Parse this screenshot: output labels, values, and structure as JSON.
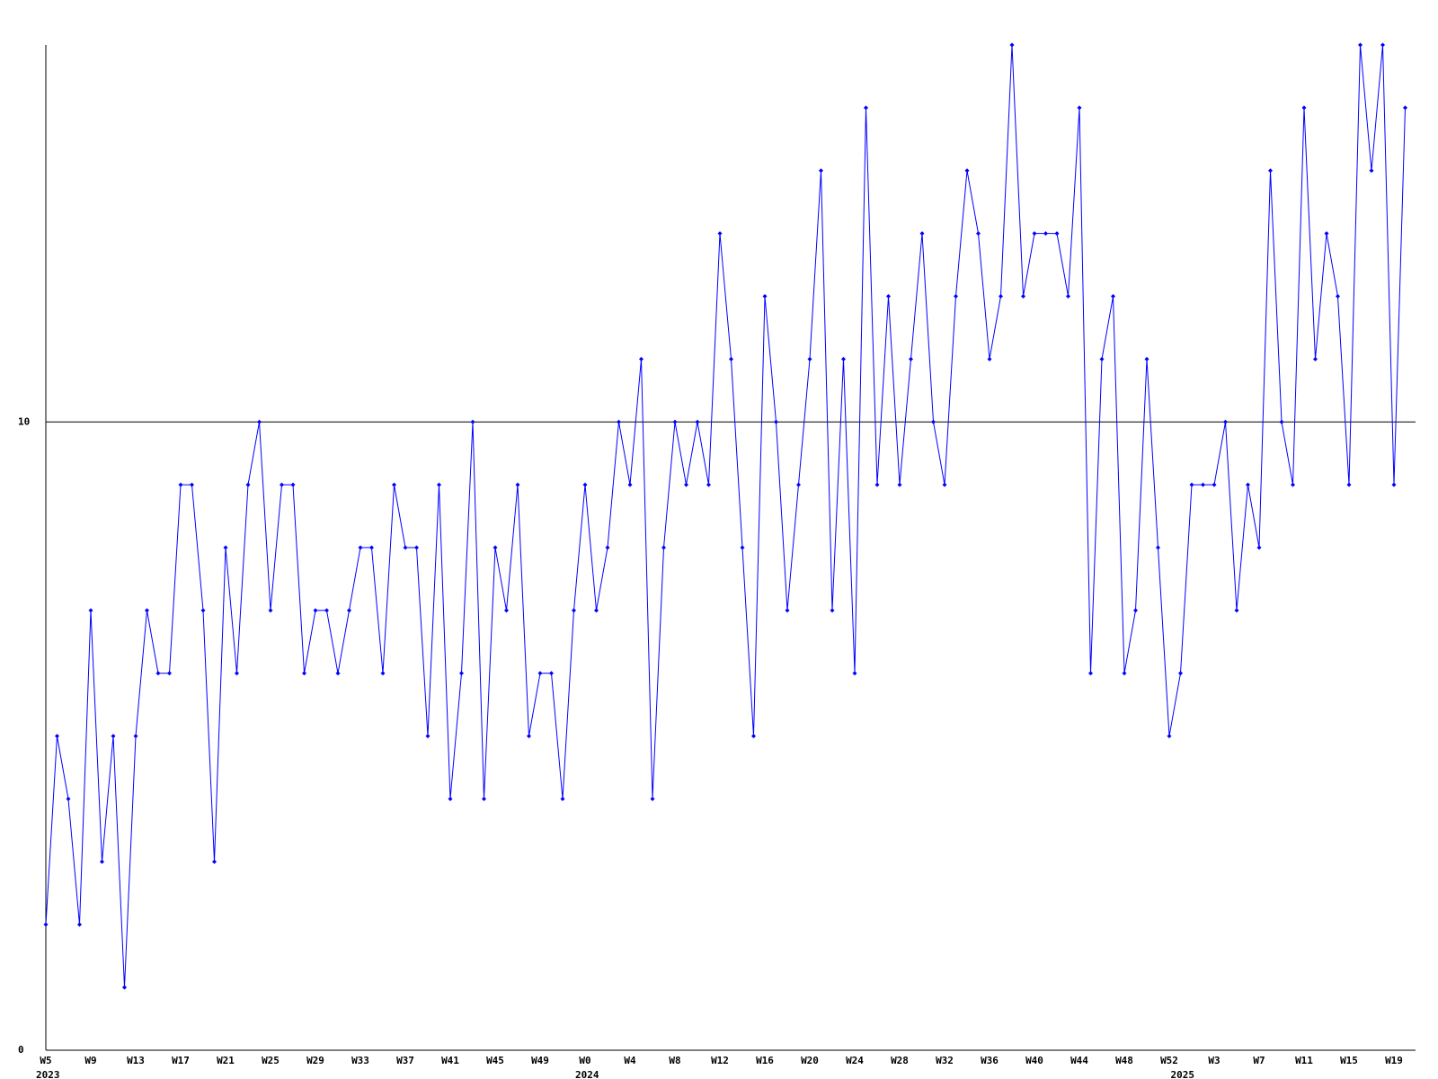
{
  "chart_data": {
    "type": "line",
    "categories": [
      "W5",
      null,
      null,
      null,
      "W9",
      null,
      null,
      null,
      "W13",
      null,
      null,
      null,
      "W17",
      null,
      null,
      null,
      "W21",
      null,
      null,
      null,
      "W25",
      null,
      null,
      null,
      "W29",
      null,
      null,
      null,
      "W33",
      null,
      null,
      null,
      "W37",
      null,
      null,
      null,
      "W41",
      null,
      null,
      null,
      "W45",
      null,
      null,
      null,
      "W49",
      null,
      null,
      null,
      "W0",
      null,
      null,
      null,
      "W4",
      null,
      null,
      null,
      "W8",
      null,
      null,
      null,
      "W12",
      null,
      null,
      null,
      "W16",
      null,
      null,
      null,
      "W20",
      null,
      null,
      null,
      "W24",
      null,
      null,
      null,
      "W28",
      null,
      null,
      null,
      "W32",
      null,
      null,
      null,
      "W36",
      null,
      null,
      null,
      "W40",
      null,
      null,
      null,
      "W44",
      null,
      null,
      null,
      "W48",
      null,
      null,
      null,
      "W52",
      null,
      null,
      null,
      "W3",
      null,
      null,
      null,
      "W7",
      null,
      null,
      null,
      "W11",
      null,
      null,
      null,
      "W15",
      null,
      null,
      null,
      "W19",
      null
    ],
    "years": [
      "2023",
      null,
      null,
      null,
      null,
      null,
      null,
      null,
      null,
      null,
      null,
      null,
      null,
      null,
      null,
      null,
      null,
      null,
      null,
      null,
      null,
      null,
      null,
      null,
      null,
      null,
      null,
      null,
      null,
      null,
      null,
      null,
      null,
      null,
      null,
      null,
      null,
      null,
      null,
      null,
      null,
      null,
      null,
      null,
      null,
      null,
      null,
      null,
      "2024",
      null,
      null,
      null,
      null,
      null,
      null,
      null,
      null,
      null,
      null,
      null,
      null,
      null,
      null,
      null,
      null,
      null,
      null,
      null,
      null,
      null,
      null,
      null,
      null,
      null,
      null,
      null,
      null,
      null,
      null,
      null,
      null,
      null,
      null,
      null,
      null,
      null,
      null,
      null,
      null,
      null,
      null,
      null,
      null,
      null,
      null,
      null,
      null,
      null,
      null,
      null,
      null,
      "2025",
      null,
      null,
      null,
      null,
      null,
      null,
      null,
      null,
      null,
      null,
      null,
      null,
      null,
      null,
      null,
      null,
      null,
      null,
      null,
      null
    ],
    "series": [
      {
        "color": "#0000ff",
        "values": [
          2,
          5,
          4,
          2,
          7,
          3,
          5,
          1,
          5,
          7,
          6,
          6,
          9,
          9,
          7,
          3,
          8,
          6,
          9,
          10,
          7,
          9,
          9,
          6,
          7,
          7,
          6,
          7,
          8,
          8,
          6,
          9,
          8,
          8,
          5,
          9,
          4,
          6,
          10,
          4,
          8,
          7,
          9,
          5,
          6,
          6,
          4,
          7,
          9,
          7,
          8,
          10,
          9,
          11,
          4,
          8,
          10,
          9,
          10,
          9,
          13,
          11,
          8,
          5,
          12,
          10,
          7,
          9,
          11,
          14,
          7,
          11,
          6,
          15,
          9,
          12,
          9,
          11,
          13,
          10,
          9,
          12,
          14,
          13,
          11,
          12,
          16,
          12,
          13,
          13,
          13,
          12,
          15,
          6,
          11,
          12,
          6,
          7,
          11,
          8,
          5,
          6,
          9,
          9,
          9,
          10,
          7,
          9,
          8,
          14,
          10,
          9,
          15,
          11,
          13,
          12,
          9,
          16,
          14,
          16,
          9,
          15
        ]
      }
    ],
    "ylim": [
      0,
      16
    ],
    "yticks": [
      0,
      10
    ],
    "grid": true
  }
}
